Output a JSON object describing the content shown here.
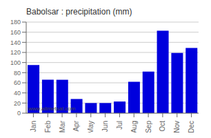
{
  "chart_data": {
    "type": "bar",
    "title": "Babolsar : precipitation (mm)",
    "categories": [
      "Jan",
      "Feb",
      "Mar",
      "Apr",
      "May",
      "Jun",
      "Jul",
      "Aug",
      "Sep",
      "Oct",
      "Nov",
      "Dec"
    ],
    "values": [
      95,
      66,
      66,
      28,
      20,
      20,
      23,
      62,
      82,
      163,
      119,
      129
    ],
    "color": "#0000dd",
    "ylim": [
      0,
      180
    ],
    "yticks": [
      0,
      20,
      40,
      60,
      80,
      100,
      120,
      140,
      160,
      180
    ],
    "grid": true,
    "annotations": [
      "www.allmetsat.com"
    ]
  }
}
